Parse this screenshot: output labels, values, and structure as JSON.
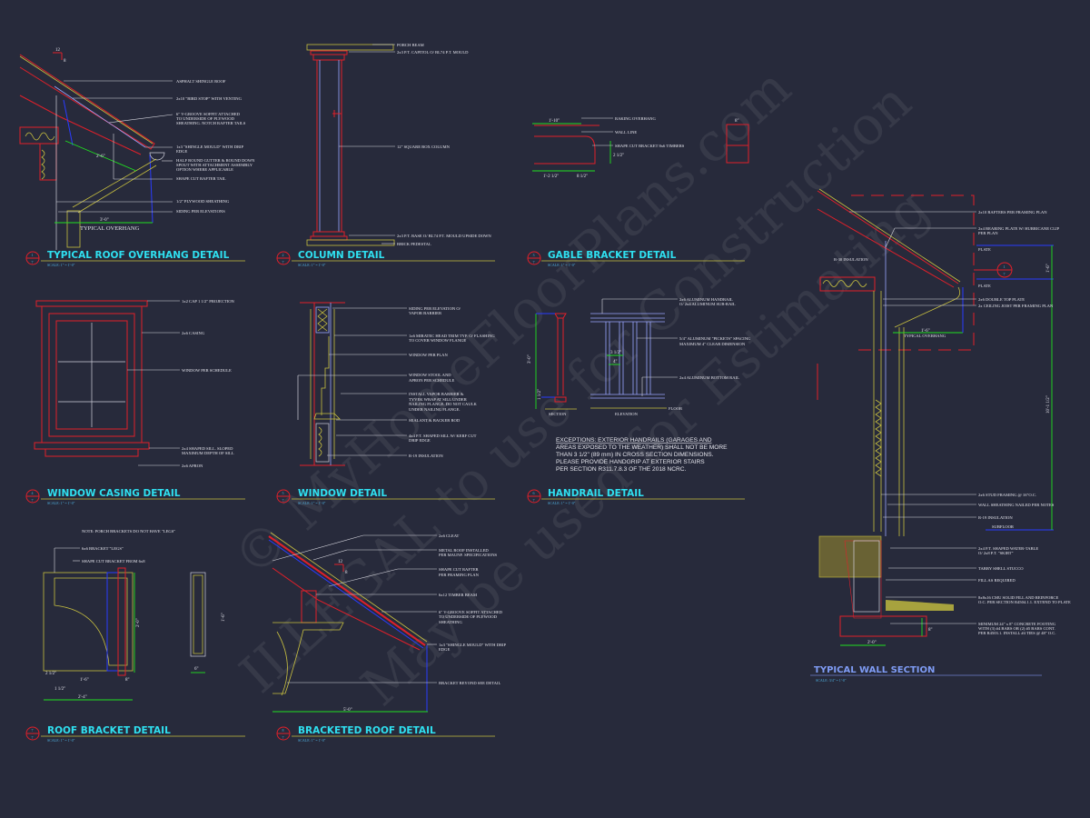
{
  "sheet": {
    "background": "#272a3b",
    "watermark": [
      "© MyHomeFloorPlans.com",
      "ILLEGAL to use for Construction",
      "May be used for Estimating"
    ]
  },
  "colors": {
    "title": "#2fe0f0",
    "wall_title": "#7f9cf5",
    "red": "#e0202a",
    "yellow": "#c8c040",
    "blue": "#2a3cff",
    "green": "#20e020"
  },
  "details": {
    "roof_overhang": {
      "number": "1",
      "sheet": "7",
      "title": "TYPICAL ROOF OVERHANG DETAIL",
      "scale": "SCALE:    1\" = 1'-0\"",
      "pitch_run": "12",
      "pitch_rise": "8",
      "dim_soffit": "2'-6\"",
      "dim_overhang": "3'-0\"",
      "overhang_label": "TYPICAL OVERHANG",
      "notes": [
        "ASPHALT SHINGLE ROOF",
        "2x10 \"BIRD STOP\" WITH VENTING",
        "6\" V-GROOVE SOFFIT ATTACHED",
        "TO UNDERSIDE OF PLYWOOD",
        "SHEATHING.  NOTCH RAFTER TAILS",
        "1x3 \"SHINGLE MOULD\" WITH DRIP",
        "EDGE",
        "HALF ROUND GUTTER & ROUND DOWN",
        "SPOUT WITH ATTACHMENT ASSEMBLY",
        "OPTION WHERE APPLICABLE",
        "SHAPE CUT RAFTER TAIL",
        "1/2\" PLYWOOD SHEATHING",
        "SIDING PER ELEVATIONS"
      ]
    },
    "column": {
      "number": "2",
      "sheet": "7",
      "title": "COLUMN DETAIL",
      "scale": "SCALE:    1\" = 1'-0\"",
      "notes": [
        "PORCH BEAM",
        "2x3 P.T. CAPITOL O/ BL74 P.T. MOULD",
        "12\" SQUARE BOX COLUMN",
        "2x3 P.T. BASE O/ BL74 P.T. MOULD UPSIDE DOWN",
        "BRICK PEDESTAL"
      ]
    },
    "gable_bracket": {
      "number": "3",
      "sheet": "7",
      "title": "GABLE BRACKET DETAIL",
      "scale": "SCALE:    1\" = 1'-0\"",
      "dims": [
        "1'-10\"",
        "1'-2 1/2\"",
        "8 1/2\"",
        "8\"",
        "2 1/2\""
      ],
      "notes": [
        "RAKING OVERHANG",
        "WALL LINE",
        "SHAPE CUT BRACKET 8x6 TIMBERS"
      ]
    },
    "wall_section": {
      "title": "TYPICAL WALL SECTION",
      "scale": "SCALE:  3/4\" = 1'-0\"",
      "callout_number": "1",
      "callout_sheet": "7",
      "dims": [
        "1'-6\"",
        "10'-1 1/2\"",
        "2'-0\"",
        "1'-6\"",
        "8\""
      ],
      "overhang_label": "TYPICAL OVERHANG",
      "insulation_top": "R-30 INSULATION",
      "notes": [
        "2x10 RAFTERS PER FRAMING PLAN",
        "2x4 BEARING PLATE W/ HURRICANE CLIP",
        "PER PLAN",
        "PLATE",
        "PLATE",
        "2x6 DOUBLE TOP PLATE",
        "2x CEILING JOIST PER FRAMING PLAN",
        "2x6 STUD FRAMING @ 16\"O.C.",
        "WALL SHEATHING NAILED PER NOTES",
        "R-19 INSULATION",
        "SUBFLOOR",
        "2x4 P.T. SHAPED WATER-TABLE",
        "O/ 2x8 P.T. \"SKIRT\"",
        "TABBY SHELL STUCCO",
        "FILL AS REQUIRED",
        "8x8x16 CMU SOLID FILL AND REINFORCE",
        "O.C. PER SECTION R4504.1.1. EXTEND TO PLATE",
        "MINIMUM 24\" x 8\" CONCRETE FOOTING",
        "WITH (3) #4 BARS OR (2) #5 BARS CONT.",
        "PER R4503.1.  INSTALL #4 TIES @ 48\" O.C."
      ]
    },
    "window_casing": {
      "number": "4",
      "sheet": "7",
      "title": "WINDOW CASING DETAIL",
      "scale": "SCALE:    1\" = 1'-0\"",
      "notes": [
        "1x2 CAP 1 1/2\" PROJECTION",
        "2x6 CASING",
        "WINDOW PER SCHEDULE",
        "2x4 SHAPED SILL.  SLOPED",
        "MAXIMUM DEPTH OF SILL",
        "2x6 APRON"
      ]
    },
    "window": {
      "number": "5",
      "sheet": "7",
      "title": "WINDOW DETAIL",
      "scale": "SCALE:    1\" = 1'-0\"",
      "notes": [
        "SIDING PER ELEVATION O/",
        "VAPOR BARRIER",
        "1x6 MIRATEC HEAD TRIM TYP. O/ FLASHING",
        "TO COVER WINDOW FLANGE",
        "WINDOW PER PLAN",
        "WINDOW STOOL AND",
        "APRON PER SCHEDULE",
        "INSTALL VAPOR BARRIER &",
        "TYVEK WRAP AT SILL UNDER",
        "NAILING FLANGE.  DO NOT CAULK",
        "UNDER NAILING FLANGE.",
        "SEALANT & BACKER ROD",
        "4x4 P.T. SHAPED SILL W/ KERF CUT",
        "DRIP EDGE",
        "R-19 INSULATION"
      ]
    },
    "handrail": {
      "number": "6",
      "sheet": "7",
      "title": "HANDRAIL DETAIL",
      "scale": "SCALE:    1\" = 1'-0\"",
      "dims": [
        "3'-0\"",
        "1 1/2\"",
        "3 1/2\"",
        "4\""
      ],
      "labels": [
        "SECTION",
        "ELEVATION",
        "FLOOR"
      ],
      "notes": [
        "2x6 ALUMINUM HANDRAIL",
        "O/ 2x4 ALUMINUM SUB-RAIL",
        "5/4\" ALUMINUM \"PICKETS\" SPACING",
        "MAXIMUM 4\" CLEAR DIMENSION",
        "2x4 ALUMINUM BOTTOM RAIL"
      ],
      "exceptions": [
        "EXCEPTIONS: EXTERIOR HANDRAILS (GARAGES AND",
        "AREAS EXPOSED TO THE WEATHER) SHALL NOT BE MORE",
        "THAN 3 1/2\" (89 mm) IN CROSS SECTION DIMENSIONS.",
        "PLEASE PROVIDE HANDGRIP AT EXTERIOR STAIRS",
        "PER SECTION R311.7.8.3 OF THE 2018 NCRC."
      ]
    },
    "roof_bracket": {
      "number": "7",
      "sheet": "7",
      "title": "ROOF BRACKET DETAIL",
      "scale": "SCALE:    1\" = 1'-0\"",
      "note_top": "NOTE: PORCH BRACKETS DO NOT HAVE \"LEGS\"",
      "notes": [
        "6x6 BRACKET \"LEGS\"",
        "SHAPE CUT BRACKET FROM 6x8"
      ],
      "dims": [
        "2'-4\"",
        "1 1/2\"",
        "2 1/2\"",
        "1'-6\"",
        "2'-0\"",
        "6\"",
        "8\"",
        "1'-6\""
      ]
    },
    "bracketed_roof": {
      "number": "8",
      "sheet": "7",
      "title": "BRACKETED ROOF DETAIL",
      "scale": "SCALE:    1\" = 1'-0\"",
      "pitch_run": "12",
      "pitch_rise": "8",
      "dim_overhang": "5'-0\"",
      "notes": [
        "2x6 CLEAT",
        "METAL ROOF INSTALLED",
        "PER MAUNF. SPECIFICATIONS",
        "SHAPE CUT RAFTER",
        "PER FRAMING PLAN",
        "6x12 TIMBER BEAM",
        "6\" V-GROOVE SOFFIT ATTACHED",
        "TO UNDERSIDE OF PLYWOOD",
        "SHEATHING",
        "1x3 \"SHINGLE MOULD\" WITH DRIP",
        "EDGE",
        "BRACKET BEYOND SEE DETAIL"
      ]
    }
  }
}
